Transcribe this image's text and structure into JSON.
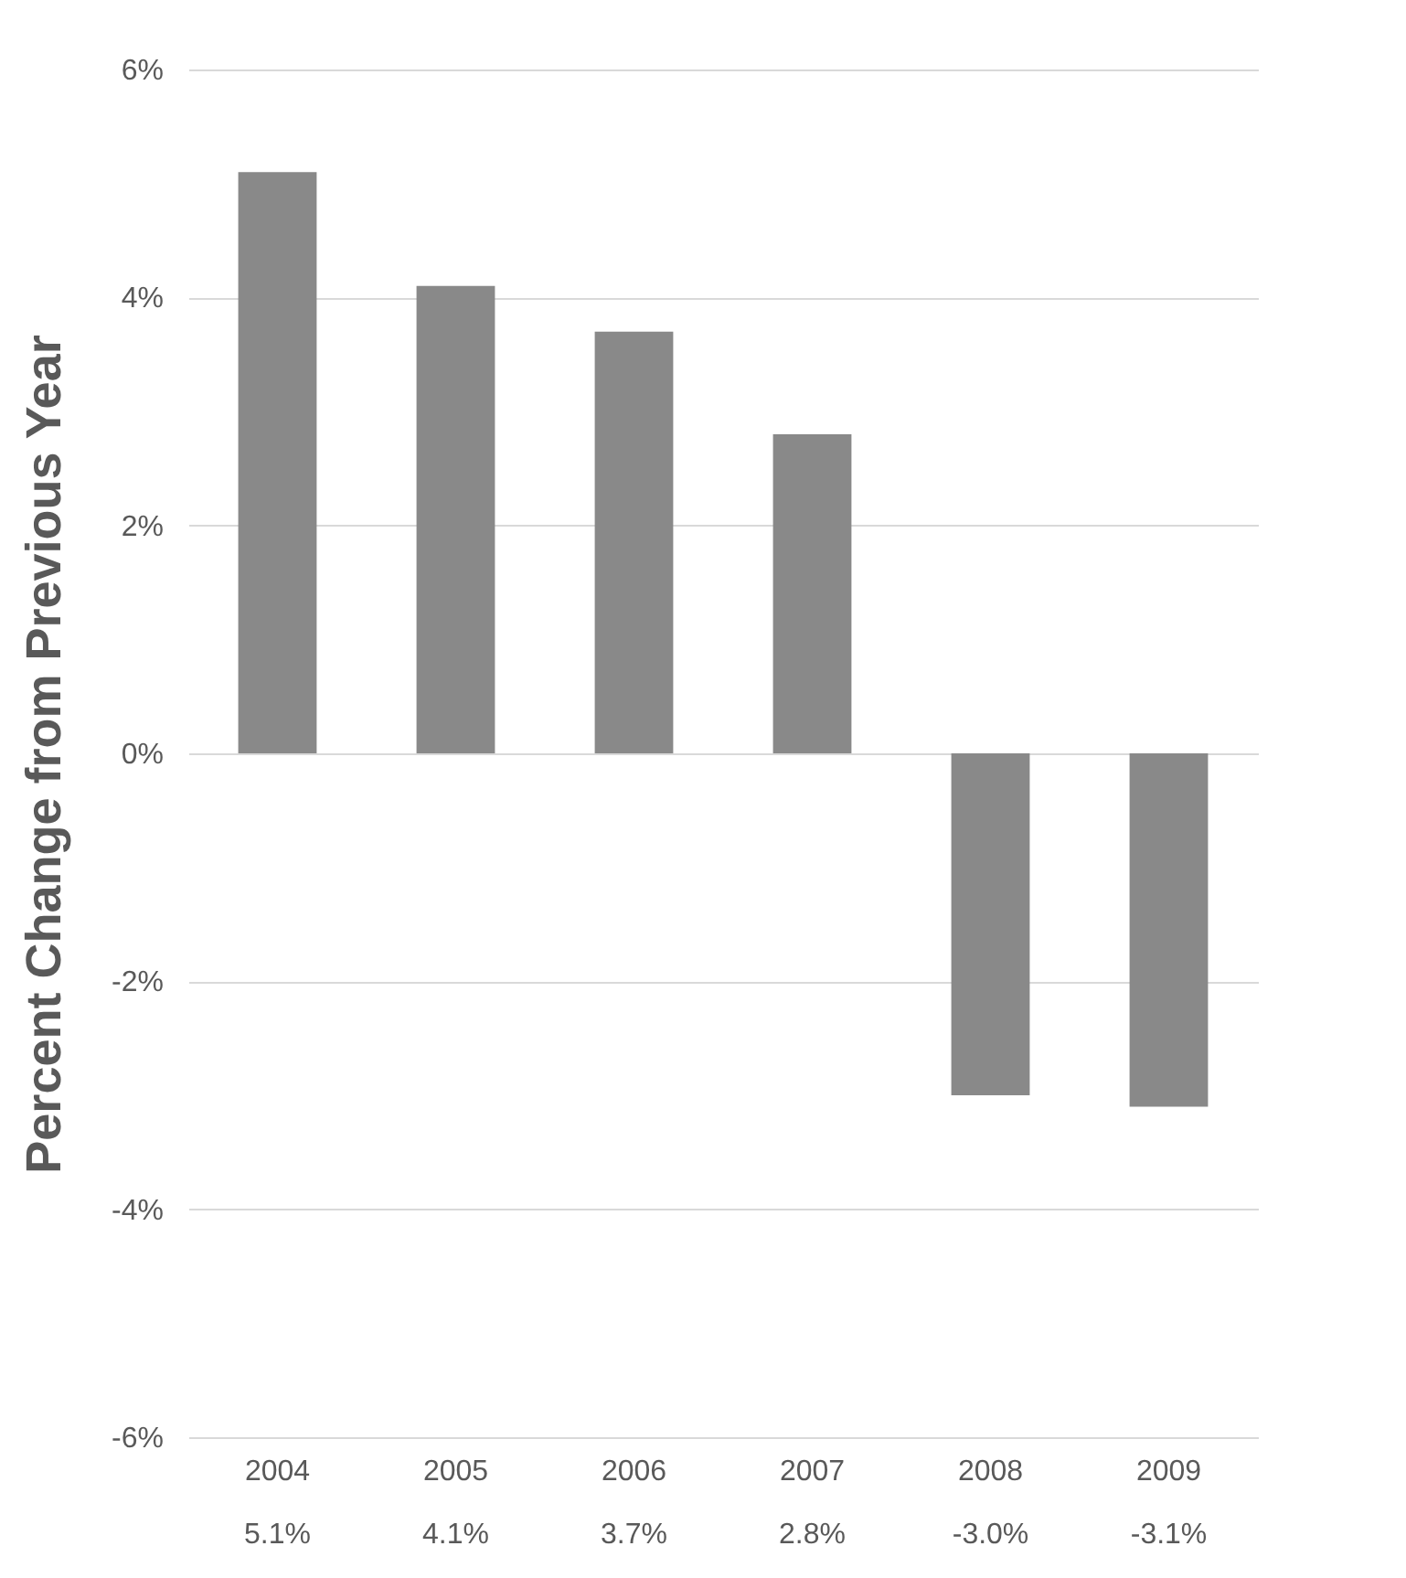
{
  "chart_data": {
    "type": "bar",
    "ylabel": "Percent Change from Previous Year",
    "categories": [
      "2004",
      "2005",
      "2006",
      "2007",
      "2008",
      "2009"
    ],
    "values": [
      5.1,
      4.1,
      3.7,
      2.8,
      -3.0,
      -3.1
    ],
    "value_labels": [
      "5.1%",
      "4.1%",
      "3.7%",
      "2.8%",
      "-3.0%",
      "-3.1%"
    ],
    "color": "#898989",
    "ylim": [
      -6,
      6
    ],
    "yticks": [
      {
        "value": -6,
        "label": "-6%"
      },
      {
        "value": -4,
        "label": "-4%"
      },
      {
        "value": -2,
        "label": "-2%"
      },
      {
        "value": 0,
        "label": "0%"
      },
      {
        "value": 2,
        "label": "2%"
      },
      {
        "value": 4,
        "label": "4%"
      },
      {
        "value": 6,
        "label": "6%"
      }
    ],
    "grid": "y"
  }
}
